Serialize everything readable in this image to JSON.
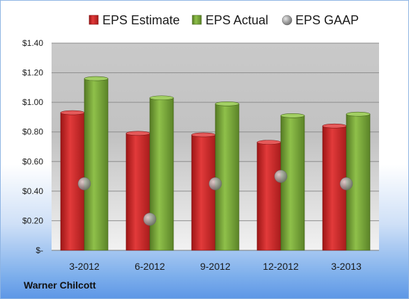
{
  "footer": {
    "company": "Warner Chilcott"
  },
  "colors": {
    "estimate": "#d42a2a",
    "actual": "#7cab3a",
    "gaap": "#9a9a9a"
  },
  "chart_data": {
    "type": "bar",
    "categories": [
      "3-2012",
      "6-2012",
      "9-2012",
      "12-2012",
      "3-2013"
    ],
    "series": [
      {
        "name": "EPS Estimate",
        "kind": "bar",
        "values": [
          0.93,
          0.79,
          0.78,
          0.73,
          0.84
        ]
      },
      {
        "name": "EPS Actual",
        "kind": "bar",
        "values": [
          1.16,
          1.03,
          0.99,
          0.91,
          0.92
        ]
      },
      {
        "name": "EPS GAAP",
        "kind": "marker",
        "values": [
          0.45,
          0.21,
          0.45,
          0.5,
          0.45
        ]
      }
    ],
    "ylim": [
      0,
      1.4
    ],
    "yticks": [
      {
        "value": 0,
        "label": "$-"
      },
      {
        "value": 0.2,
        "label": "$0.20"
      },
      {
        "value": 0.4,
        "label": "$0.40"
      },
      {
        "value": 0.6,
        "label": "$0.60"
      },
      {
        "value": 0.8,
        "label": "$0.80"
      },
      {
        "value": 1.0,
        "label": "$1.00"
      },
      {
        "value": 1.2,
        "label": "$1.20"
      },
      {
        "value": 1.4,
        "label": "$1.40"
      }
    ],
    "grid": true,
    "legend": "top"
  }
}
